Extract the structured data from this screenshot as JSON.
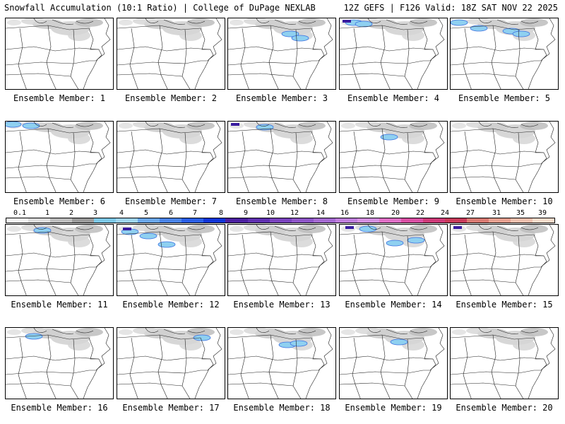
{
  "header": {
    "left": "Snowfall Accumulation (10:1 Ratio) | College of DuPage NEXLAB",
    "right": "12Z GEFS | F126 Valid: 18Z SAT NOV 22 2025"
  },
  "colorbar": {
    "ticks": [
      "0.1",
      "1",
      "2",
      "3",
      "4",
      "5",
      "6",
      "7",
      "8",
      "9",
      "10",
      "12",
      "14",
      "16",
      "18",
      "20",
      "22",
      "24",
      "27",
      "31",
      "35",
      "39"
    ],
    "colors": [
      "#f4f4f4",
      "#dcdcdc",
      "#bdbdbd",
      "#9a9a9a",
      "#7cc8e6",
      "#9fd5f0",
      "#6aa7ec",
      "#4a84e8",
      "#2a5ee6",
      "#1034d8",
      "#4b1fa0",
      "#5f2fb0",
      "#7a42be",
      "#8e55c8",
      "#a56ad2",
      "#bf7edc",
      "#d48fe0",
      "#e06fc6",
      "#d94fa3",
      "#cf3a78",
      "#c83a5a",
      "#d97a72",
      "#e6a090",
      "#f0c0ae",
      "#f8dccb"
    ]
  },
  "members": [
    {
      "label": "Ensemble Member: 1",
      "snow": "gray",
      "blue": [],
      "purple": []
    },
    {
      "label": "Ensemble Member: 2",
      "snow": "gray",
      "blue": [],
      "purple": []
    },
    {
      "label": "Ensemble Member: 3",
      "snow": "gray",
      "blue": [
        [
          88,
          22
        ],
        [
          102,
          28
        ]
      ],
      "purple": []
    },
    {
      "label": "Ensemble Member: 4",
      "snow": "gray",
      "blue": [
        [
          20,
          6
        ],
        [
          34,
          8
        ]
      ],
      "purple": [
        [
          4,
          2
        ]
      ]
    },
    {
      "label": "Ensemble Member: 5",
      "snow": "gray",
      "blue": [
        [
          40,
          14
        ],
        [
          86,
          18
        ],
        [
          100,
          22
        ],
        [
          12,
          6
        ]
      ],
      "purple": []
    },
    {
      "label": "Ensemble Member: 6",
      "snow": "gray",
      "blue": [
        [
          36,
          6
        ],
        [
          10,
          4
        ]
      ],
      "purple": []
    },
    {
      "label": "Ensemble Member: 7",
      "snow": "gray",
      "blue": [],
      "purple": []
    },
    {
      "label": "Ensemble Member: 8",
      "snow": "gray",
      "blue": [
        [
          52,
          8
        ]
      ],
      "purple": [
        [
          4,
          2
        ]
      ]
    },
    {
      "label": "Ensemble Member: 9",
      "snow": "gray",
      "blue": [
        [
          70,
          22
        ]
      ],
      "purple": []
    },
    {
      "label": "Ensemble Member: 10",
      "snow": "gray",
      "blue": [],
      "purple": []
    },
    {
      "label": "Ensemble Member: 11",
      "snow": "gray",
      "blue": [
        [
          52,
          8
        ]
      ],
      "purple": []
    },
    {
      "label": "Ensemble Member: 12",
      "snow": "gray",
      "blue": [
        [
          18,
          10
        ],
        [
          44,
          16
        ],
        [
          70,
          28
        ]
      ],
      "purple": [
        [
          8,
          4
        ]
      ]
    },
    {
      "label": "Ensemble Member: 13",
      "snow": "gray",
      "blue": [],
      "purple": []
    },
    {
      "label": "Ensemble Member: 14",
      "snow": "gray",
      "blue": [
        [
          40,
          6
        ],
        [
          78,
          26
        ],
        [
          108,
          22
        ]
      ],
      "purple": [
        [
          8,
          2
        ]
      ]
    },
    {
      "label": "Ensemble Member: 15",
      "snow": "gray",
      "blue": [],
      "purple": [
        [
          4,
          2
        ]
      ]
    },
    {
      "label": "Ensemble Member: 16",
      "snow": "gray",
      "blue": [
        [
          40,
          12
        ]
      ],
      "purple": []
    },
    {
      "label": "Ensemble Member: 17",
      "snow": "gray",
      "blue": [
        [
          120,
          14
        ]
      ],
      "purple": []
    },
    {
      "label": "Ensemble Member: 18",
      "snow": "gray",
      "blue": [
        [
          84,
          24
        ],
        [
          100,
          22
        ]
      ],
      "purple": []
    },
    {
      "label": "Ensemble Member: 19",
      "snow": "gray",
      "blue": [
        [
          84,
          20
        ]
      ],
      "purple": []
    },
    {
      "label": "Ensemble Member: 20",
      "snow": "gray",
      "blue": [],
      "purple": []
    }
  ]
}
